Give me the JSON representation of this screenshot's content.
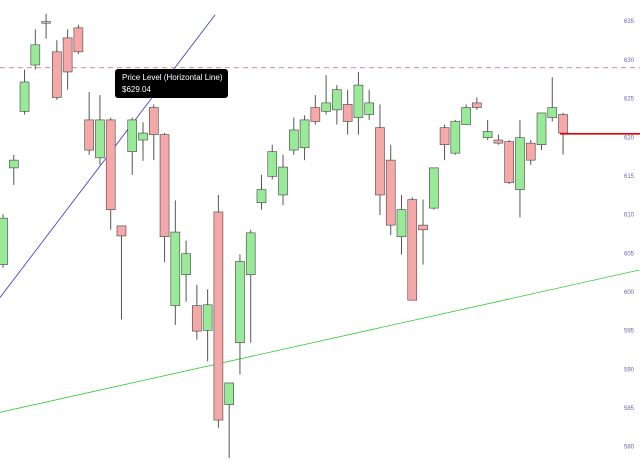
{
  "chart_data": {
    "type": "candlestick",
    "open": [
      603.6,
      616.1,
      623.4,
      629.4,
      634.8,
      631.1,
      632.9,
      634.2,
      622.3,
      617.4,
      622.3,
      608.6,
      618.2,
      619.7,
      623.9,
      620.4,
      598.3,
      602.3,
      598.3,
      595.1,
      610.4,
      585.5,
      593.5,
      602.3,
      611.6,
      615.0,
      612.6,
      618.4,
      618.7,
      623.9,
      623.4,
      623.6,
      624.3,
      622.6,
      623.0,
      621.3,
      617.1,
      607.2,
      612.0,
      608.7,
      610.9,
      621.3,
      618.0,
      621.7,
      624.5,
      620.0,
      619.7,
      619.5,
      613.3,
      619.3,
      619.1,
      622.6,
      623.0
    ],
    "high": [
      610.1,
      617.8,
      628.8,
      634.0,
      636.0,
      632.6,
      634.0,
      634.6,
      625.9,
      625.5,
      622.6,
      608.6,
      622.6,
      622.0,
      624.3,
      620.6,
      611.9,
      606.7,
      601.0,
      600.4,
      612.6,
      588.3,
      604.9,
      608.1,
      615.2,
      619.1,
      617.8,
      622.6,
      622.9,
      625.5,
      628.1,
      626.8,
      626.2,
      628.5,
      626.2,
      624.3,
      619.1,
      612.6,
      612.3,
      612.0,
      616.1,
      621.7,
      622.3,
      624.3,
      625.2,
      622.3,
      620.4,
      619.7,
      622.3,
      619.7,
      623.2,
      627.8,
      623.2
    ],
    "low": [
      603.2,
      613.9,
      623.0,
      628.8,
      632.8,
      624.9,
      626.2,
      630.8,
      617.8,
      616.5,
      608.1,
      596.5,
      615.2,
      617.0,
      617.1,
      603.9,
      595.8,
      598.8,
      593.9,
      591.1,
      582.5,
      578.6,
      589.4,
      593.5,
      610.7,
      614.6,
      611.3,
      617.8,
      617.1,
      621.7,
      623.0,
      621.7,
      620.4,
      620.4,
      622.3,
      610.0,
      607.4,
      604.9,
      599.0,
      603.6,
      610.7,
      617.1,
      617.8,
      621.7,
      623.6,
      619.7,
      619.1,
      614.0,
      609.7,
      616.5,
      618.4,
      622.1,
      617.8
    ],
    "close": [
      609.6,
      617.1,
      627.2,
      632.0,
      635.0,
      625.2,
      628.5,
      631.1,
      618.4,
      622.3,
      610.7,
      607.3,
      622.3,
      620.6,
      620.4,
      607.2,
      607.8,
      605.0,
      595.0,
      598.4,
      583.5,
      588.3,
      604.0,
      607.7,
      613.3,
      618.2,
      616.2,
      621.0,
      622.3,
      622.1,
      624.5,
      626.2,
      622.1,
      626.8,
      624.5,
      612.6,
      608.7,
      610.7,
      599.0,
      608.1,
      616.1,
      619.1,
      622.1,
      623.9,
      623.9,
      620.8,
      619.3,
      614.2,
      620.0,
      617.1,
      623.2,
      623.9,
      620.6
    ],
    "up_color": "#98ea98",
    "down_color": "#f6a8a8",
    "ylim": [
      576.4,
      637.8
    ],
    "yticks": [
      580,
      585,
      590,
      595,
      600,
      605,
      610,
      615,
      620,
      625,
      630,
      635
    ],
    "price_line": {
      "value": 620.5,
      "color": "#dd0000"
    },
    "horizontal_line": {
      "title": "Price Level (Horizontal Line)",
      "value": 629.04,
      "label": "$629.04",
      "color": "#cc6677"
    },
    "trendlines": [
      {
        "color": "#3333cc",
        "x": [
          -0.3,
          19.7
        ],
        "y": [
          599.3,
          635.9
        ]
      },
      {
        "color": "#33cc33",
        "x": [
          -0.3,
          59.1
        ],
        "y": [
          584.5,
          602.9
        ]
      }
    ]
  }
}
